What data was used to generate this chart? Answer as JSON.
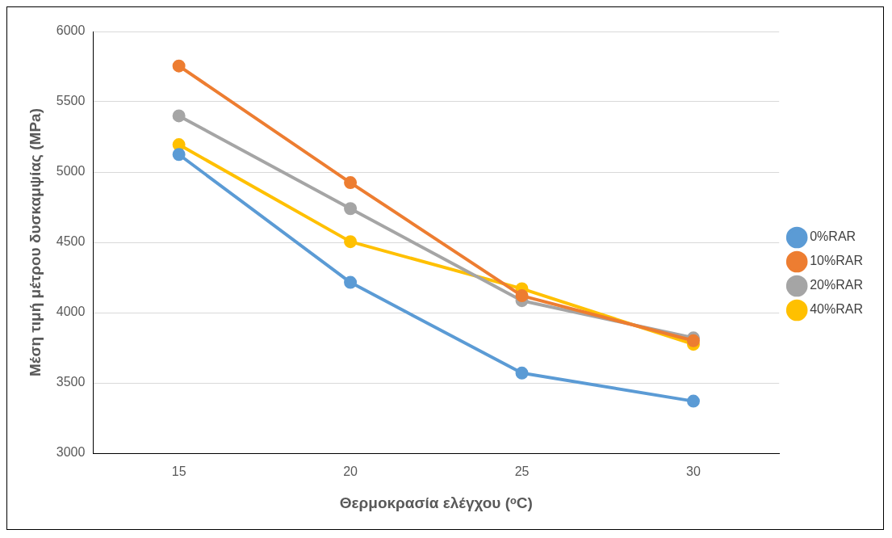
{
  "chart_data": {
    "type": "line",
    "xlabel": "Θερμοκρασία ελέγχου (ᵒC)",
    "ylabel": "Μέση τιμή μέτρου δυσκαμψίας (MPa)",
    "categories": [
      "15",
      "20",
      "25",
      "30"
    ],
    "series": [
      {
        "name": "0%RAR",
        "color": "#5b9bd5",
        "values": [
          5125,
          4215,
          3570,
          3370
        ]
      },
      {
        "name": "10%RAR",
        "color": "#ed7d31",
        "values": [
          5755,
          4925,
          4120,
          3800
        ]
      },
      {
        "name": "20%RAR",
        "color": "#a5a5a5",
        "values": [
          5400,
          4740,
          4085,
          3820
        ]
      },
      {
        "name": "40%RAR",
        "color": "#ffc000",
        "values": [
          5195,
          4505,
          4170,
          3775
        ]
      }
    ],
    "ylim": [
      3000,
      6000
    ],
    "yticks": [
      3000,
      3500,
      4000,
      4500,
      5000,
      5500,
      6000
    ],
    "grid": "y",
    "legend": "right",
    "marker": "circle",
    "line_style": "solid"
  }
}
